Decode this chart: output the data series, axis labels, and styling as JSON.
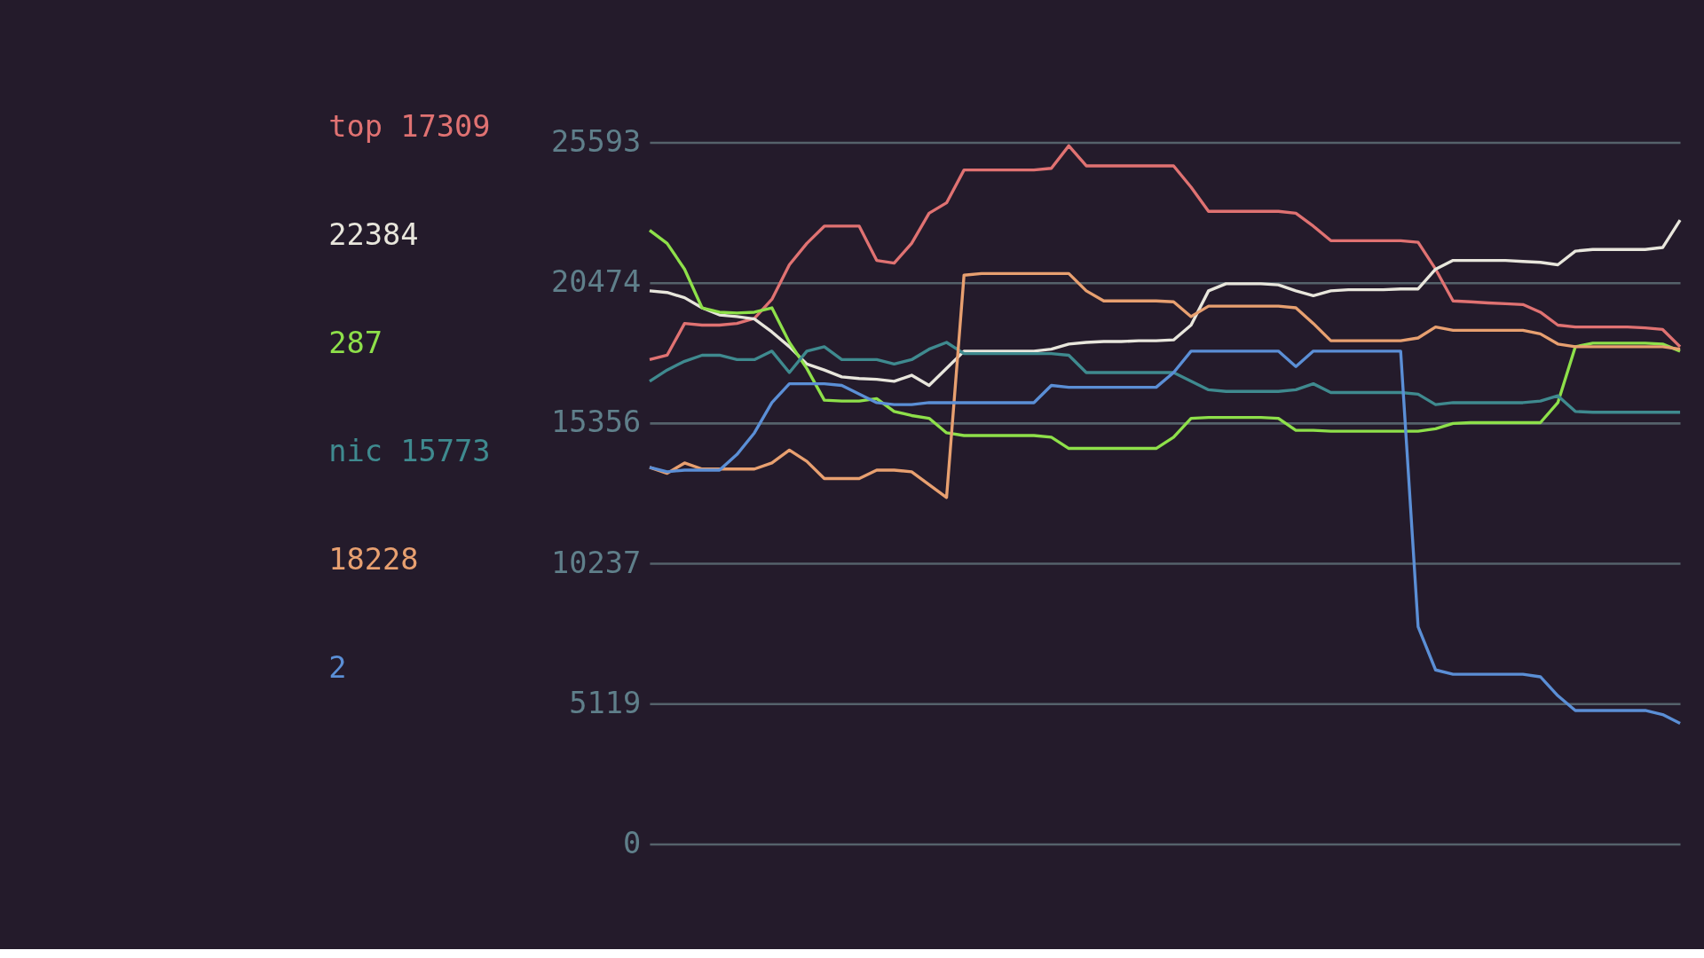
{
  "chart_data": {
    "type": "line",
    "categories": [
      null,
      null,
      null,
      null,
      null,
      null,
      null,
      null,
      null,
      null,
      null,
      null,
      null,
      null,
      null,
      null,
      null,
      null,
      null,
      null,
      null,
      null,
      null,
      null,
      null,
      null,
      null,
      null,
      null,
      null,
      null,
      null,
      null,
      null,
      null,
      null,
      null,
      null,
      null,
      null,
      null,
      null,
      null,
      null,
      null,
      null,
      null,
      null,
      null,
      null,
      null,
      null,
      null,
      null,
      null,
      null,
      null,
      null,
      null,
      null
    ],
    "ylim": [
      0,
      25593
    ],
    "yticks": [
      0,
      5119,
      10237,
      15356,
      20474,
      25593
    ],
    "grid": "y",
    "tick_labels": "y",
    "legend": "left",
    "line_style": "solid",
    "marker": "none",
    "series": [
      {
        "name": "top 17309",
        "color": "#e07272",
        "values": [
          17670,
          17830,
          18990,
          18930,
          18930,
          18990,
          19180,
          19870,
          21130,
          21910,
          22540,
          22540,
          22540,
          21290,
          21190,
          21910,
          23010,
          23390,
          24590,
          24590,
          24590,
          24590,
          24590,
          24650,
          25470,
          24740,
          24740,
          24740,
          24740,
          24740,
          24740,
          23960,
          23080,
          23080,
          23080,
          23080,
          23080,
          23010,
          22540,
          22010,
          22010,
          22010,
          22010,
          22010,
          21950,
          20970,
          19810,
          19780,
          19740,
          19710,
          19680,
          19400,
          18930,
          18860,
          18860,
          18860,
          18860,
          18830,
          18770,
          18140
        ]
      },
      {
        "name": "22384",
        "color": "#e8e6dc",
        "values": [
          20180,
          20120,
          19930,
          19560,
          19300,
          19240,
          19150,
          18680,
          18140,
          17510,
          17290,
          17040,
          16980,
          16950,
          16880,
          17100,
          16730,
          17350,
          17980,
          17980,
          17980,
          17980,
          17980,
          18050,
          18240,
          18300,
          18330,
          18330,
          18360,
          18360,
          18390,
          18930,
          20180,
          20440,
          20440,
          20440,
          20400,
          20180,
          20000,
          20180,
          20220,
          20220,
          20220,
          20250,
          20250,
          20970,
          21290,
          21290,
          21290,
          21290,
          21250,
          21220,
          21130,
          21630,
          21690,
          21690,
          21690,
          21690,
          21760,
          22760
        ]
      },
      {
        "name": "287",
        "color": "#8ee04a",
        "values": [
          22390,
          21910,
          20970,
          19560,
          19400,
          19370,
          19400,
          19560,
          18300,
          17350,
          16190,
          16160,
          16160,
          16250,
          15780,
          15630,
          15530,
          15000,
          14900,
          14900,
          14900,
          14900,
          14900,
          14840,
          14430,
          14430,
          14430,
          14430,
          14430,
          14430,
          14840,
          15530,
          15560,
          15560,
          15560,
          15560,
          15530,
          15090,
          15090,
          15060,
          15060,
          15060,
          15060,
          15060,
          15060,
          15150,
          15340,
          15370,
          15370,
          15370,
          15370,
          15370,
          16100,
          18140,
          18270,
          18270,
          18270,
          18270,
          18240,
          17980
        ]
      },
      {
        "name": "nic 15773",
        "color": "#3f8a8f",
        "values": [
          16880,
          17290,
          17610,
          17830,
          17830,
          17670,
          17670,
          17980,
          17200,
          17980,
          18140,
          17670,
          17670,
          17670,
          17510,
          17670,
          18050,
          18300,
          17890,
          17890,
          17890,
          17890,
          17890,
          17890,
          17830,
          17200,
          17200,
          17200,
          17200,
          17200,
          17200,
          16880,
          16570,
          16510,
          16510,
          16510,
          16510,
          16570,
          16790,
          16470,
          16470,
          16470,
          16470,
          16470,
          16410,
          16030,
          16100,
          16100,
          16100,
          16100,
          16100,
          16160,
          16350,
          15780,
          15750,
          15750,
          15750,
          15750,
          15750,
          15750
        ]
      },
      {
        "name": "18228",
        "color": "#e8a070",
        "values": [
          13740,
          13520,
          13900,
          13680,
          13680,
          13680,
          13680,
          13900,
          14370,
          13960,
          13330,
          13330,
          13330,
          13640,
          13640,
          13580,
          13110,
          12640,
          20750,
          20810,
          20810,
          20810,
          20810,
          20810,
          20810,
          20180,
          19810,
          19810,
          19810,
          19810,
          19780,
          19240,
          19620,
          19620,
          19620,
          19620,
          19620,
          19560,
          18990,
          18360,
          18360,
          18360,
          18360,
          18360,
          18460,
          18860,
          18740,
          18740,
          18740,
          18740,
          18740,
          18610,
          18240,
          18140,
          18140,
          18140,
          18140,
          18140,
          18140,
          18050
        ]
      },
      {
        "name": "2",
        "color": "#5b8fd6",
        "values": [
          13740,
          13580,
          13640,
          13640,
          13640,
          14210,
          15000,
          16100,
          16790,
          16790,
          16790,
          16730,
          16410,
          16100,
          16030,
          16030,
          16100,
          16100,
          16100,
          16100,
          16100,
          16100,
          16100,
          16730,
          16660,
          16660,
          16660,
          16660,
          16660,
          16660,
          17200,
          17980,
          17980,
          17980,
          17980,
          17980,
          17980,
          17420,
          17980,
          17980,
          17980,
          17980,
          17980,
          17980,
          7920,
          6350,
          6190,
          6190,
          6190,
          6190,
          6190,
          6100,
          5410,
          4870,
          4870,
          4870,
          4870,
          4870,
          4720,
          4400
        ]
      }
    ]
  }
}
